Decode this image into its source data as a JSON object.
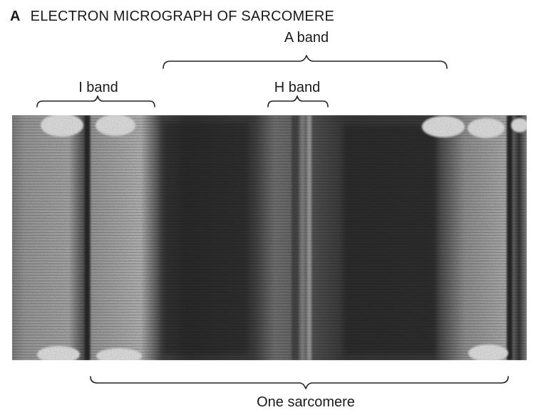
{
  "figure": {
    "panel_letter": "A",
    "title": "ELECTRON MICROGRAPH OF SARCOMERE"
  },
  "labels": {
    "a_band": "A band",
    "i_band": "I band",
    "h_band": "H band",
    "sarcomere": "One sarcomere"
  },
  "colors": {
    "text": "#1a1a1a",
    "bracket": "#222222",
    "dark_band": "#3f3f3f",
    "light_band": "#bdbdbd",
    "z_line": "#2a2a2a"
  }
}
